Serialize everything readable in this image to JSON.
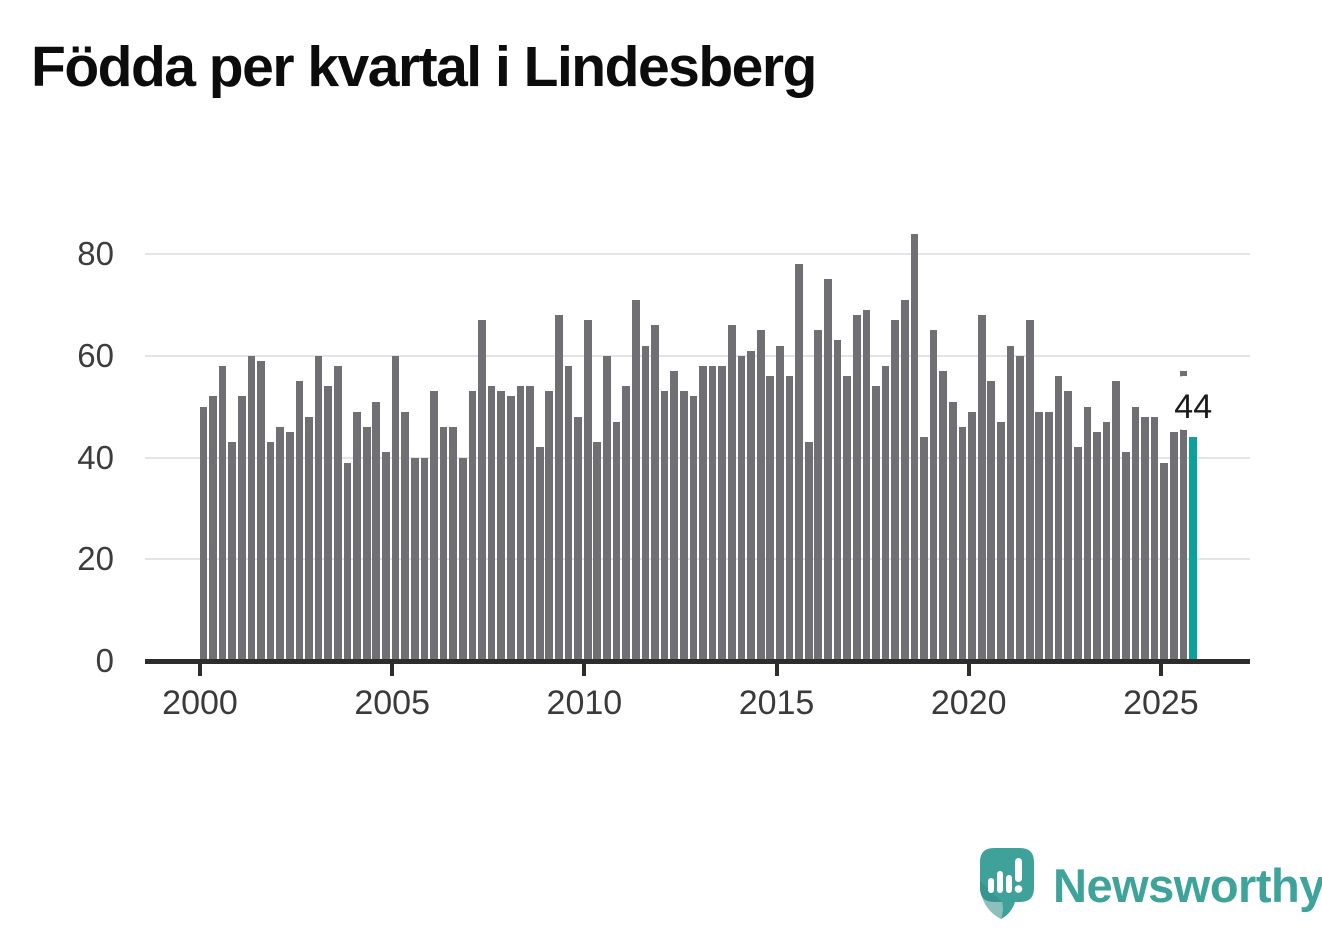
{
  "title": "Födda per kvartal i Lindesberg",
  "chart_data": {
    "type": "bar",
    "title": "Födda per kvartal i Lindesberg",
    "period": "quarterly",
    "start_period": "2000 Q1",
    "end_period": "2025 Q4",
    "xlabel": "",
    "ylabel": "",
    "ylim": [
      0,
      88
    ],
    "y_ticks": [
      0,
      20,
      40,
      60,
      80
    ],
    "x_tick_labels": [
      "2000",
      "2005",
      "2010",
      "2015",
      "2020",
      "2025"
    ],
    "grid": "horizontal",
    "bar_color": "#6f6f74",
    "values": [
      50,
      52,
      58,
      43,
      52,
      60,
      59,
      43,
      46,
      45,
      55,
      48,
      60,
      54,
      58,
      39,
      49,
      46,
      51,
      41,
      60,
      49,
      40,
      40,
      53,
      46,
      46,
      40,
      53,
      67,
      54,
      53,
      52,
      54,
      54,
      42,
      53,
      68,
      58,
      48,
      67,
      43,
      60,
      47,
      54,
      71,
      62,
      66,
      53,
      57,
      53,
      52,
      58,
      58,
      58,
      66,
      60,
      61,
      65,
      56,
      62,
      56,
      78,
      43,
      65,
      75,
      63,
      56,
      68,
      69,
      54,
      58,
      67,
      71,
      84,
      44,
      65,
      57,
      51,
      46,
      49,
      68,
      55,
      47,
      62,
      60,
      67,
      49,
      49,
      56,
      53,
      42,
      50,
      45,
      47,
      55,
      41,
      50,
      48,
      48,
      39,
      45,
      57,
      44
    ],
    "highlight_last": {
      "period": "2025 Q4",
      "value": 44,
      "label": "44",
      "color": "#0aa09b"
    }
  },
  "annotation": {
    "label": "44"
  },
  "footer": {
    "brand": "Newsworthy",
    "brand_color": "#3ea39b"
  }
}
